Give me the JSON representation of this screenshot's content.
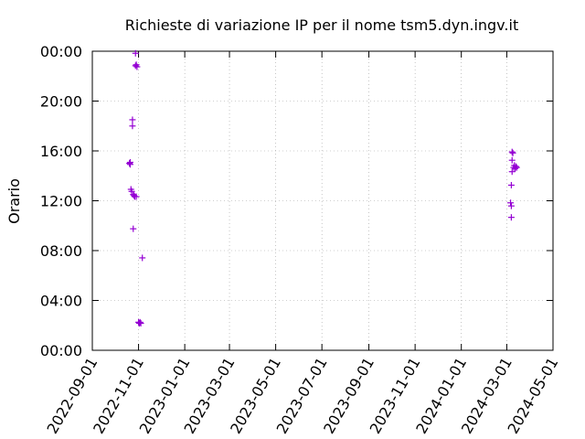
{
  "chart_data": {
    "type": "scatter",
    "title": "Richieste di variazione IP per il nome tsm5.dyn.ingv.it",
    "xlabel": "",
    "ylabel": "Orario",
    "x_type": "date",
    "xlim": [
      "2022-09-01",
      "2024-05-01"
    ],
    "ylim": [
      "00:00",
      "24:00"
    ],
    "x_ticks": [
      "2022-09-01",
      "2022-11-01",
      "2023-01-01",
      "2023-03-01",
      "2023-05-01",
      "2023-07-01",
      "2023-09-01",
      "2023-11-01",
      "2024-01-01",
      "2024-03-01",
      "2024-05-01"
    ],
    "y_ticks": [
      "00:00",
      "04:00",
      "08:00",
      "12:00",
      "16:00",
      "20:00",
      "00:00"
    ],
    "grid": true,
    "legend": "none",
    "marker": "plus",
    "color": "#9400d3",
    "series": [
      {
        "points": [
          {
            "x": "2022-10-20",
            "y": "15:00"
          },
          {
            "x": "2022-10-21",
            "y": "14:55"
          },
          {
            "x": "2022-10-21",
            "y": "15:05"
          },
          {
            "x": "2022-10-22",
            "y": "12:55"
          },
          {
            "x": "2022-10-23",
            "y": "12:45"
          },
          {
            "x": "2022-10-24",
            "y": "18:30"
          },
          {
            "x": "2022-10-24",
            "y": "18:00"
          },
          {
            "x": "2022-10-25",
            "y": "12:30"
          },
          {
            "x": "2022-10-25",
            "y": "09:45"
          },
          {
            "x": "2022-10-26",
            "y": "12:25"
          },
          {
            "x": "2022-10-27",
            "y": "12:20"
          },
          {
            "x": "2022-10-28",
            "y": "23:50"
          },
          {
            "x": "2022-10-28",
            "y": "22:50"
          },
          {
            "x": "2022-10-29",
            "y": "22:55"
          },
          {
            "x": "2022-10-29",
            "y": "12:20"
          },
          {
            "x": "2022-10-30",
            "y": "22:45"
          },
          {
            "x": "2022-11-01",
            "y": "02:15"
          },
          {
            "x": "2022-11-02",
            "y": "02:10"
          },
          {
            "x": "2022-11-03",
            "y": "02:15"
          },
          {
            "x": "2022-11-04",
            "y": "02:10"
          },
          {
            "x": "2022-11-06",
            "y": "07:25"
          },
          {
            "x": "2024-03-06",
            "y": "11:50"
          },
          {
            "x": "2024-03-07",
            "y": "11:35"
          },
          {
            "x": "2024-03-07",
            "y": "10:40"
          },
          {
            "x": "2024-03-07",
            "y": "13:15"
          },
          {
            "x": "2024-03-08",
            "y": "15:55"
          },
          {
            "x": "2024-03-08",
            "y": "15:15"
          },
          {
            "x": "2024-03-08",
            "y": "14:20"
          },
          {
            "x": "2024-03-09",
            "y": "15:50"
          },
          {
            "x": "2024-03-10",
            "y": "14:40"
          },
          {
            "x": "2024-03-11",
            "y": "14:50"
          },
          {
            "x": "2024-03-12",
            "y": "14:35"
          },
          {
            "x": "2024-03-13",
            "y": "14:45"
          },
          {
            "x": "2024-03-14",
            "y": "14:40"
          }
        ]
      }
    ]
  }
}
